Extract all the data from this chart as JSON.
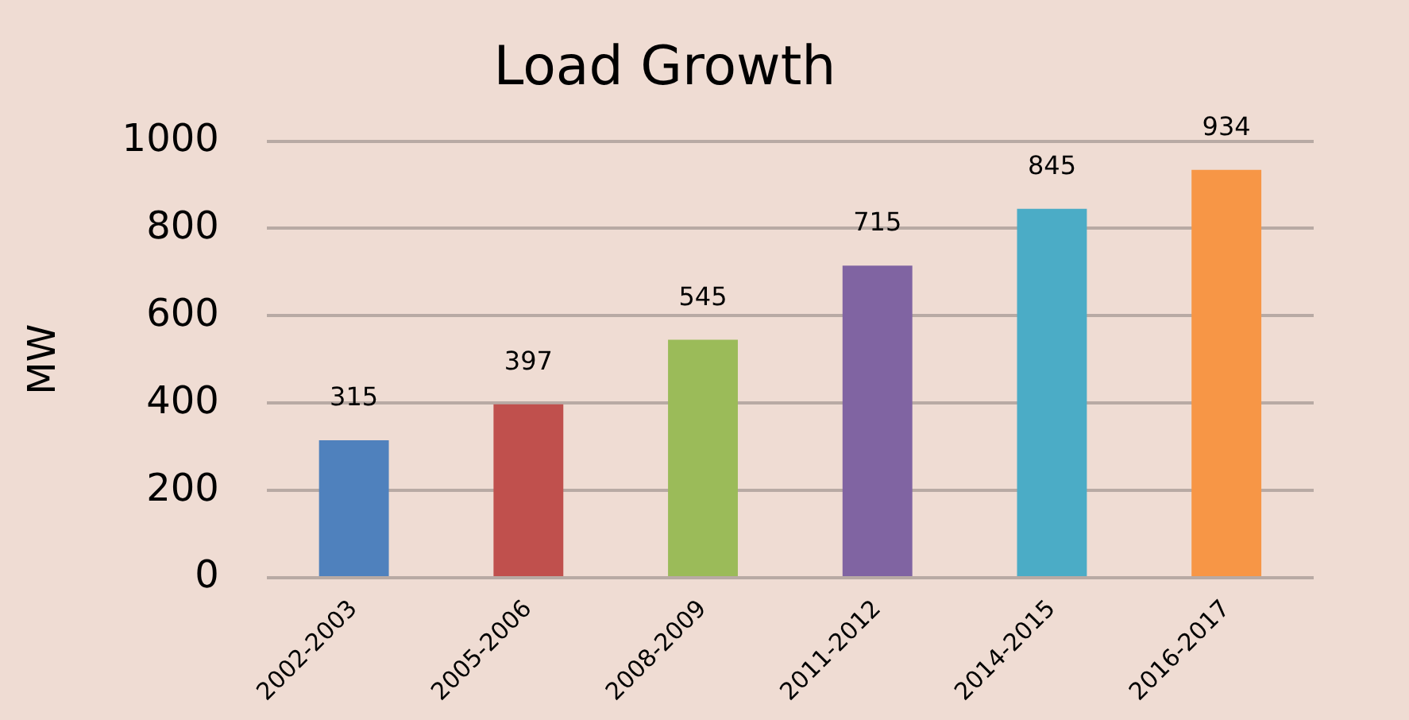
{
  "chart_data": {
    "type": "bar",
    "title": "Load Growth",
    "ylabel": "MW",
    "categories": [
      "2002-2003",
      "2005-2006",
      "2008-2009",
      "2011-2012",
      "2014-2015",
      "2016-2017"
    ],
    "values": [
      315,
      397,
      545,
      715,
      845,
      934
    ],
    "colors": [
      "#4f81bd",
      "#c0504d",
      "#9bbb59",
      "#8064a2",
      "#4bacc6",
      "#f79646"
    ],
    "ylim": [
      0,
      1000
    ],
    "yticks": [
      0,
      200,
      400,
      600,
      800,
      1000
    ],
    "grid": "y",
    "data_labels": true,
    "legend": false
  }
}
